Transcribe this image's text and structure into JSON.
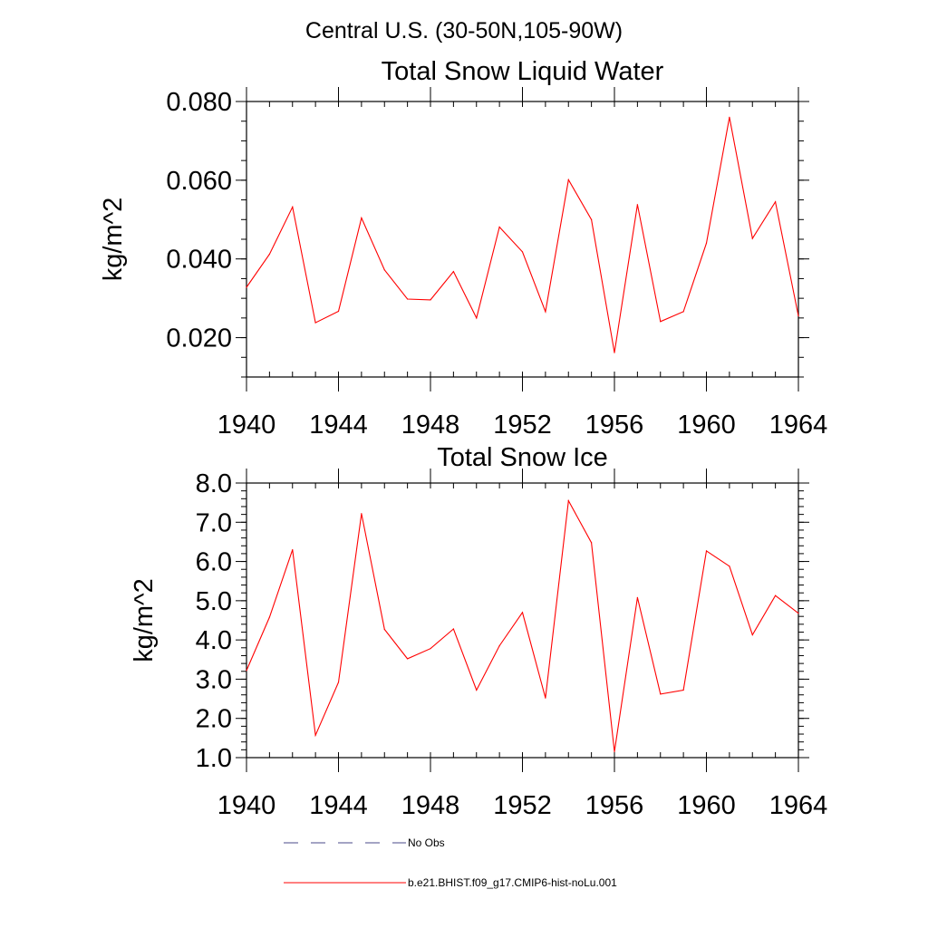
{
  "figure": {
    "title": "Central U.S. (30-50N,105-90W)"
  },
  "chart_data": [
    {
      "type": "line",
      "title": "Total Snow Liquid Water",
      "xlabel": "",
      "ylabel": "kg/m^2",
      "xlim": [
        1940,
        1964
      ],
      "ylim": [
        0.01,
        0.08
      ],
      "x_ticks": [
        1940,
        1944,
        1948,
        1952,
        1956,
        1960,
        1964
      ],
      "x_tick_labels": [
        "1940",
        "1944",
        "1948",
        "1952",
        "1956",
        "1960",
        "1964"
      ],
      "y_ticks": [
        0.02,
        0.04,
        0.06,
        0.08
      ],
      "y_tick_labels": [
        "0.020",
        "0.040",
        "0.060",
        "0.080"
      ],
      "y_minor_step": 0.005,
      "x_minor_step": 1,
      "grid": false,
      "series": [
        {
          "name": "b.e21.BHIST.f09_g17.CMIP6-hist-noLu.001",
          "color": "#ff0000",
          "x": [
            1940,
            1941,
            1942,
            1943,
            1944,
            1945,
            1946,
            1947,
            1948,
            1949,
            1950,
            1951,
            1952,
            1953,
            1954,
            1955,
            1956,
            1957,
            1958,
            1959,
            1960,
            1961,
            1962,
            1963,
            1964
          ],
          "values": [
            0.0328,
            0.0412,
            0.0532,
            0.0238,
            0.0267,
            0.0504,
            0.0372,
            0.0298,
            0.0296,
            0.0368,
            0.025,
            0.0481,
            0.0418,
            0.0266,
            0.0601,
            0.05,
            0.0162,
            0.0538,
            0.0241,
            0.0266,
            0.044,
            0.076,
            0.0452,
            0.0545,
            0.0255
          ]
        }
      ]
    },
    {
      "type": "line",
      "title": "Total Snow Ice",
      "xlabel": "",
      "ylabel": "kg/m^2",
      "xlim": [
        1940,
        1964
      ],
      "ylim": [
        1.0,
        8.0
      ],
      "x_ticks": [
        1940,
        1944,
        1948,
        1952,
        1956,
        1960,
        1964
      ],
      "x_tick_labels": [
        "1940",
        "1944",
        "1948",
        "1952",
        "1956",
        "1960",
        "1964"
      ],
      "y_ticks": [
        1,
        2,
        3,
        4,
        5,
        6,
        7,
        8
      ],
      "y_tick_labels": [
        "1.0",
        "2.0",
        "3.0",
        "4.0",
        "5.0",
        "6.0",
        "7.0",
        "8.0"
      ],
      "y_minor_step": 0.2,
      "x_minor_step": 1,
      "grid": false,
      "series": [
        {
          "name": "b.e21.BHIST.f09_g17.CMIP6-hist-noLu.001",
          "color": "#ff0000",
          "x": [
            1940,
            1941,
            1942,
            1943,
            1944,
            1945,
            1946,
            1947,
            1948,
            1949,
            1950,
            1951,
            1952,
            1953,
            1954,
            1955,
            1956,
            1957,
            1958,
            1959,
            1960,
            1961,
            1962,
            1963,
            1964
          ],
          "values": [
            3.22,
            4.58,
            6.3,
            1.57,
            2.92,
            7.22,
            4.27,
            3.52,
            3.78,
            4.28,
            2.72,
            3.85,
            4.7,
            2.52,
            7.55,
            6.48,
            1.15,
            5.08,
            2.62,
            2.72,
            6.27,
            5.88,
            4.13,
            5.13,
            4.68
          ]
        }
      ]
    }
  ],
  "legend": {
    "placement": "bottom",
    "items": [
      {
        "label": "No Obs",
        "style": "dashed",
        "color": "#4a4a8a"
      },
      {
        "label": "b.e21.BHIST.f09_g17.CMIP6-hist-noLu.001",
        "style": "solid",
        "color": "#ff0000"
      }
    ]
  }
}
